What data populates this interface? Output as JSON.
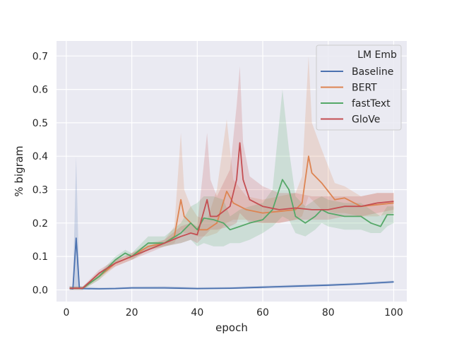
{
  "chart_data": {
    "type": "line",
    "xlabel": "epoch",
    "ylabel": "% bigram",
    "xlim": [
      -3,
      104
    ],
    "ylim": [
      -0.035,
      0.745
    ],
    "xticks": [
      0,
      20,
      40,
      60,
      80,
      100
    ],
    "yticks": [
      0.0,
      0.1,
      0.2,
      0.3,
      0.4,
      0.5,
      0.6,
      0.7
    ],
    "xtick_labels": [
      "0",
      "20",
      "40",
      "60",
      "80",
      "100"
    ],
    "ytick_labels": [
      "0.0",
      "0.1",
      "0.2",
      "0.3",
      "0.4",
      "0.5",
      "0.6",
      "0.7"
    ],
    "grid": true,
    "legend": {
      "title": "LM Emb",
      "position": "top-right",
      "entries": [
        "Baseline",
        "BERT",
        "fastText",
        "GloVe"
      ]
    },
    "series": [
      {
        "name": "Baseline",
        "color": "#4c72b0",
        "x": [
          1,
          2,
          3,
          4,
          5,
          10,
          15,
          20,
          30,
          40,
          50,
          60,
          70,
          80,
          90,
          100
        ],
        "y": [
          0.005,
          0.003,
          0.155,
          0.005,
          0.004,
          0.003,
          0.004,
          0.006,
          0.006,
          0.004,
          0.005,
          0.008,
          0.011,
          0.014,
          0.018,
          0.024
        ],
        "lower": [
          0.0,
          0.0,
          0.0,
          0.0,
          0.0,
          0.0,
          0.001,
          0.002,
          0.002,
          0.001,
          0.002,
          0.005,
          0.008,
          0.011,
          0.015,
          0.02
        ],
        "upper": [
          0.012,
          0.008,
          0.4,
          0.012,
          0.01,
          0.007,
          0.008,
          0.01,
          0.011,
          0.008,
          0.009,
          0.012,
          0.015,
          0.018,
          0.022,
          0.028
        ]
      },
      {
        "name": "BERT",
        "color": "#dd8452",
        "x": [
          1,
          5,
          10,
          15,
          20,
          25,
          30,
          33,
          35,
          36,
          38,
          40,
          43,
          46,
          49,
          51,
          55,
          60,
          65,
          70,
          72,
          74,
          75,
          78,
          82,
          85,
          90,
          95,
          100
        ],
        "y": [
          0.005,
          0.005,
          0.04,
          0.08,
          0.1,
          0.13,
          0.14,
          0.16,
          0.27,
          0.22,
          0.2,
          0.18,
          0.18,
          0.2,
          0.295,
          0.26,
          0.24,
          0.23,
          0.235,
          0.24,
          0.26,
          0.4,
          0.35,
          0.32,
          0.27,
          0.275,
          0.25,
          0.255,
          0.26
        ],
        "lower": [
          0.0,
          0.0,
          0.03,
          0.07,
          0.09,
          0.12,
          0.13,
          0.14,
          0.18,
          0.17,
          0.17,
          0.16,
          0.16,
          0.17,
          0.2,
          0.21,
          0.21,
          0.2,
          0.2,
          0.21,
          0.22,
          0.28,
          0.27,
          0.24,
          0.23,
          0.23,
          0.22,
          0.22,
          0.23
        ],
        "upper": [
          0.01,
          0.01,
          0.05,
          0.09,
          0.11,
          0.14,
          0.15,
          0.19,
          0.47,
          0.3,
          0.25,
          0.22,
          0.21,
          0.3,
          0.51,
          0.33,
          0.28,
          0.27,
          0.28,
          0.29,
          0.34,
          0.7,
          0.5,
          0.42,
          0.32,
          0.31,
          0.28,
          0.29,
          0.29
        ]
      },
      {
        "name": "fastText",
        "color": "#55a868",
        "x": [
          1,
          5,
          10,
          15,
          18,
          20,
          25,
          30,
          35,
          38,
          40,
          42,
          45,
          48,
          50,
          53,
          56,
          60,
          63,
          66,
          68,
          70,
          73,
          76,
          78,
          80,
          85,
          90,
          93,
          96,
          98,
          100
        ],
        "y": [
          0.005,
          0.005,
          0.04,
          0.09,
          0.11,
          0.1,
          0.14,
          0.14,
          0.17,
          0.2,
          0.18,
          0.215,
          0.21,
          0.2,
          0.18,
          0.19,
          0.2,
          0.21,
          0.24,
          0.33,
          0.3,
          0.22,
          0.2,
          0.22,
          0.24,
          0.23,
          0.22,
          0.22,
          0.2,
          0.19,
          0.225,
          0.225
        ],
        "lower": [
          0.0,
          0.0,
          0.03,
          0.08,
          0.1,
          0.09,
          0.12,
          0.13,
          0.14,
          0.15,
          0.13,
          0.14,
          0.13,
          0.13,
          0.14,
          0.14,
          0.15,
          0.17,
          0.19,
          0.22,
          0.21,
          0.17,
          0.16,
          0.18,
          0.2,
          0.19,
          0.18,
          0.18,
          0.17,
          0.17,
          0.19,
          0.2
        ],
        "upper": [
          0.01,
          0.01,
          0.05,
          0.1,
          0.12,
          0.11,
          0.16,
          0.16,
          0.2,
          0.25,
          0.26,
          0.28,
          0.28,
          0.27,
          0.22,
          0.24,
          0.25,
          0.26,
          0.3,
          0.6,
          0.42,
          0.28,
          0.25,
          0.27,
          0.28,
          0.27,
          0.26,
          0.26,
          0.24,
          0.22,
          0.25,
          0.25
        ]
      },
      {
        "name": "GloVe",
        "color": "#c44e52",
        "x": [
          1,
          5,
          10,
          15,
          20,
          25,
          30,
          35,
          38,
          40,
          43,
          44,
          46,
          50,
          52,
          53,
          54,
          56,
          60,
          65,
          70,
          75,
          80,
          85,
          90,
          95,
          100
        ],
        "y": [
          0.005,
          0.005,
          0.05,
          0.08,
          0.1,
          0.12,
          0.14,
          0.16,
          0.17,
          0.165,
          0.27,
          0.22,
          0.22,
          0.25,
          0.33,
          0.44,
          0.33,
          0.27,
          0.25,
          0.24,
          0.245,
          0.24,
          0.24,
          0.25,
          0.25,
          0.26,
          0.265
        ],
        "lower": [
          0.0,
          0.0,
          0.04,
          0.07,
          0.09,
          0.11,
          0.13,
          0.14,
          0.15,
          0.14,
          0.17,
          0.18,
          0.18,
          0.19,
          0.2,
          0.23,
          0.22,
          0.2,
          0.2,
          0.2,
          0.21,
          0.21,
          0.21,
          0.22,
          0.22,
          0.23,
          0.24
        ],
        "upper": [
          0.01,
          0.01,
          0.06,
          0.09,
          0.11,
          0.13,
          0.15,
          0.19,
          0.2,
          0.19,
          0.47,
          0.33,
          0.28,
          0.36,
          0.55,
          0.67,
          0.44,
          0.34,
          0.31,
          0.29,
          0.29,
          0.28,
          0.28,
          0.28,
          0.28,
          0.29,
          0.29
        ]
      }
    ]
  }
}
